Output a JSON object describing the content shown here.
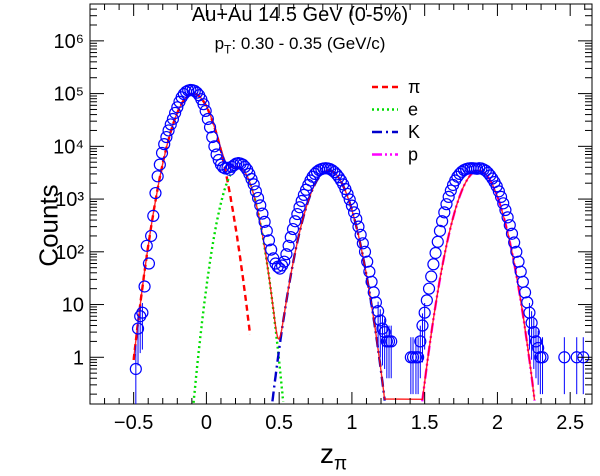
{
  "title": "Au+Au 14.5 GeV (0-5%)",
  "subtitle_prefix": "p",
  "subtitle_sub": "T",
  "subtitle_rest": ": 0.30 - 0.35 (GeV/c)",
  "ylabel": "Counts",
  "xlabel_main": "z",
  "xlabel_sub": "π",
  "colors": {
    "pi": "#ff0000",
    "e": "#00dd00",
    "K": "#0000cc",
    "p": "#ff00ff",
    "data": "#0000ff"
  },
  "chart_data": {
    "type": "scatter",
    "title": "Au+Au 14.5 GeV (0-5%)",
    "xlabel": "zπ",
    "ylabel": "Counts",
    "xlim": [
      -0.8,
      2.65
    ],
    "ylim": [
      0.13,
      5000000
    ],
    "y_scale": "log",
    "x_ticks": [
      "−0.5",
      "0",
      "0.5",
      "1",
      "1.5",
      "2",
      "2.5"
    ],
    "x_tick_values": [
      -0.5,
      0,
      0.5,
      1,
      1.5,
      2,
      2.5
    ],
    "y_ticks": [
      "1",
      "10",
      "10²",
      "10³",
      "10⁴",
      "10⁵",
      "10⁶"
    ],
    "y_tick_values": [
      1,
      10,
      100,
      1000,
      10000,
      100000,
      1000000
    ],
    "legend_position": "top-right",
    "series": [
      {
        "name": "π",
        "style": "dashed",
        "color": "#ff0000",
        "peak_x": -0.09,
        "peak_y": 100000,
        "sigma": 0.085,
        "x_range": [
          -0.5,
          0.3
        ]
      },
      {
        "name": "e",
        "style": "dotted",
        "color": "#00dd00",
        "peak_x": 0.22,
        "peak_y": 4000,
        "sigma": 0.068,
        "x_range": [
          -0.1,
          0.6
        ]
      },
      {
        "name": "K",
        "style": "dash-dot",
        "color": "#0000cc",
        "peak_x": 0.84,
        "peak_y": 3500,
        "sigma": 0.086,
        "x_range": [
          0.37,
          1.3
        ]
      },
      {
        "name": "p",
        "style": "dash-dot-dot",
        "color": "#ff00ff",
        "peak_x": 1.87,
        "peak_y": 3500,
        "sigma": 0.086,
        "x_range": [
          1.4,
          2.33
        ]
      }
    ],
    "data_points": [
      [
        -0.485,
        0.6
      ],
      [
        -0.47,
        3.5
      ],
      [
        -0.455,
        6
      ],
      [
        -0.44,
        7
      ],
      [
        -0.425,
        22
      ],
      [
        -0.41,
        130
      ],
      [
        -0.395,
        60
      ],
      [
        -0.38,
        200
      ],
      [
        -0.365,
        480
      ],
      [
        -0.35,
        1300
      ],
      [
        -0.335,
        2700
      ],
      [
        -0.32,
        4500
      ],
      [
        -0.305,
        7500
      ],
      [
        -0.29,
        11000
      ],
      [
        -0.275,
        15000
      ],
      [
        -0.26,
        20000
      ],
      [
        -0.245,
        26000
      ],
      [
        -0.23,
        33000
      ],
      [
        -0.215,
        43000
      ],
      [
        -0.2,
        55000
      ],
      [
        -0.185,
        70000
      ],
      [
        -0.17,
        85000
      ],
      [
        -0.155,
        98000
      ],
      [
        -0.14,
        108000
      ],
      [
        -0.125,
        114000
      ],
      [
        -0.11,
        117000
      ],
      [
        -0.095,
        116000
      ],
      [
        -0.08,
        112000
      ],
      [
        -0.065,
        104000
      ],
      [
        -0.05,
        93000
      ],
      [
        -0.035,
        78000
      ],
      [
        -0.02,
        63000
      ],
      [
        -0.005,
        47000
      ],
      [
        0.01,
        33000
      ],
      [
        0.025,
        23000
      ],
      [
        0.04,
        15000
      ],
      [
        0.055,
        10000
      ],
      [
        0.07,
        7000
      ],
      [
        0.085,
        5500
      ],
      [
        0.1,
        4500
      ],
      [
        0.115,
        4000
      ],
      [
        0.13,
        3800
      ],
      [
        0.145,
        3900
      ],
      [
        0.16,
        3600
      ],
      [
        0.175,
        4100
      ],
      [
        0.19,
        4400
      ],
      [
        0.205,
        4700
      ],
      [
        0.22,
        4800
      ],
      [
        0.235,
        4700
      ],
      [
        0.25,
        4500
      ],
      [
        0.265,
        4100
      ],
      [
        0.28,
        3600
      ],
      [
        0.295,
        3000
      ],
      [
        0.31,
        2400
      ],
      [
        0.325,
        1900
      ],
      [
        0.34,
        1400
      ],
      [
        0.355,
        1050
      ],
      [
        0.37,
        760
      ],
      [
        0.385,
        530
      ],
      [
        0.4,
        370
      ],
      [
        0.415,
        250
      ],
      [
        0.43,
        165
      ],
      [
        0.445,
        110
      ],
      [
        0.46,
        75
      ],
      [
        0.475,
        60
      ],
      [
        0.49,
        52
      ],
      [
        0.505,
        48
      ],
      [
        0.52,
        55
      ],
      [
        0.535,
        65
      ],
      [
        0.55,
        90
      ],
      [
        0.565,
        130
      ],
      [
        0.58,
        190
      ],
      [
        0.595,
        270
      ],
      [
        0.61,
        380
      ],
      [
        0.625,
        520
      ],
      [
        0.64,
        700
      ],
      [
        0.655,
        920
      ],
      [
        0.67,
        1200
      ],
      [
        0.685,
        1500
      ],
      [
        0.7,
        1850
      ],
      [
        0.715,
        2250
      ],
      [
        0.73,
        2650
      ],
      [
        0.745,
        3000
      ],
      [
        0.76,
        3300
      ],
      [
        0.775,
        3550
      ],
      [
        0.79,
        3700
      ],
      [
        0.805,
        3800
      ],
      [
        0.82,
        3850
      ],
      [
        0.835,
        3800
      ],
      [
        0.85,
        3700
      ],
      [
        0.865,
        3500
      ],
      [
        0.88,
        3250
      ],
      [
        0.895,
        2950
      ],
      [
        0.91,
        2600
      ],
      [
        0.925,
        2250
      ],
      [
        0.94,
        1900
      ],
      [
        0.955,
        1550
      ],
      [
        0.97,
        1250
      ],
      [
        0.985,
        980
      ],
      [
        1.0,
        750
      ],
      [
        1.015,
        560
      ],
      [
        1.03,
        420
      ],
      [
        1.045,
        300
      ],
      [
        1.06,
        210
      ],
      [
        1.075,
        145
      ],
      [
        1.09,
        100
      ],
      [
        1.105,
        65
      ],
      [
        1.12,
        42
      ],
      [
        1.135,
        27
      ],
      [
        1.15,
        17
      ],
      [
        1.165,
        11
      ],
      [
        1.18,
        7.5
      ],
      [
        1.195,
        5
      ],
      [
        1.21,
        3.5
      ],
      [
        1.225,
        3
      ],
      [
        1.24,
        2
      ],
      [
        1.255,
        2
      ],
      [
        1.27,
        2
      ],
      [
        1.405,
        1
      ],
      [
        1.42,
        1
      ],
      [
        1.44,
        1
      ],
      [
        1.455,
        1
      ],
      [
        1.47,
        2
      ],
      [
        1.485,
        4
      ],
      [
        1.5,
        7
      ],
      [
        1.515,
        12
      ],
      [
        1.53,
        20
      ],
      [
        1.545,
        34
      ],
      [
        1.56,
        58
      ],
      [
        1.575,
        95
      ],
      [
        1.59,
        155
      ],
      [
        1.605,
        250
      ],
      [
        1.62,
        380
      ],
      [
        1.635,
        560
      ],
      [
        1.65,
        800
      ],
      [
        1.665,
        1100
      ],
      [
        1.68,
        1450
      ],
      [
        1.695,
        1850
      ],
      [
        1.71,
        2250
      ],
      [
        1.725,
        2650
      ],
      [
        1.74,
        3000
      ],
      [
        1.755,
        3300
      ],
      [
        1.77,
        3550
      ],
      [
        1.785,
        3700
      ],
      [
        1.8,
        3800
      ],
      [
        1.815,
        3850
      ],
      [
        1.83,
        3850
      ],
      [
        1.845,
        3800
      ],
      [
        1.86,
        3750
      ],
      [
        1.875,
        3850
      ],
      [
        1.89,
        3800
      ],
      [
        1.905,
        3650
      ],
      [
        1.92,
        3450
      ],
      [
        1.935,
        3150
      ],
      [
        1.95,
        2800
      ],
      [
        1.965,
        2450
      ],
      [
        1.98,
        2100
      ],
      [
        1.995,
        1750
      ],
      [
        2.01,
        1400
      ],
      [
        2.025,
        1100
      ],
      [
        2.04,
        830
      ],
      [
        2.055,
        620
      ],
      [
        2.07,
        450
      ],
      [
        2.085,
        320
      ],
      [
        2.1,
        220
      ],
      [
        2.115,
        150
      ],
      [
        2.13,
        100
      ],
      [
        2.145,
        65
      ],
      [
        2.16,
        42
      ],
      [
        2.175,
        27
      ],
      [
        2.19,
        17
      ],
      [
        2.205,
        11
      ],
      [
        2.22,
        7
      ],
      [
        2.235,
        4.5
      ],
      [
        2.25,
        3
      ],
      [
        2.265,
        2
      ],
      [
        2.28,
        1.5
      ],
      [
        2.295,
        1
      ],
      [
        2.31,
        1
      ],
      [
        2.46,
        1
      ],
      [
        2.545,
        1
      ],
      [
        2.59,
        1
      ]
    ]
  }
}
